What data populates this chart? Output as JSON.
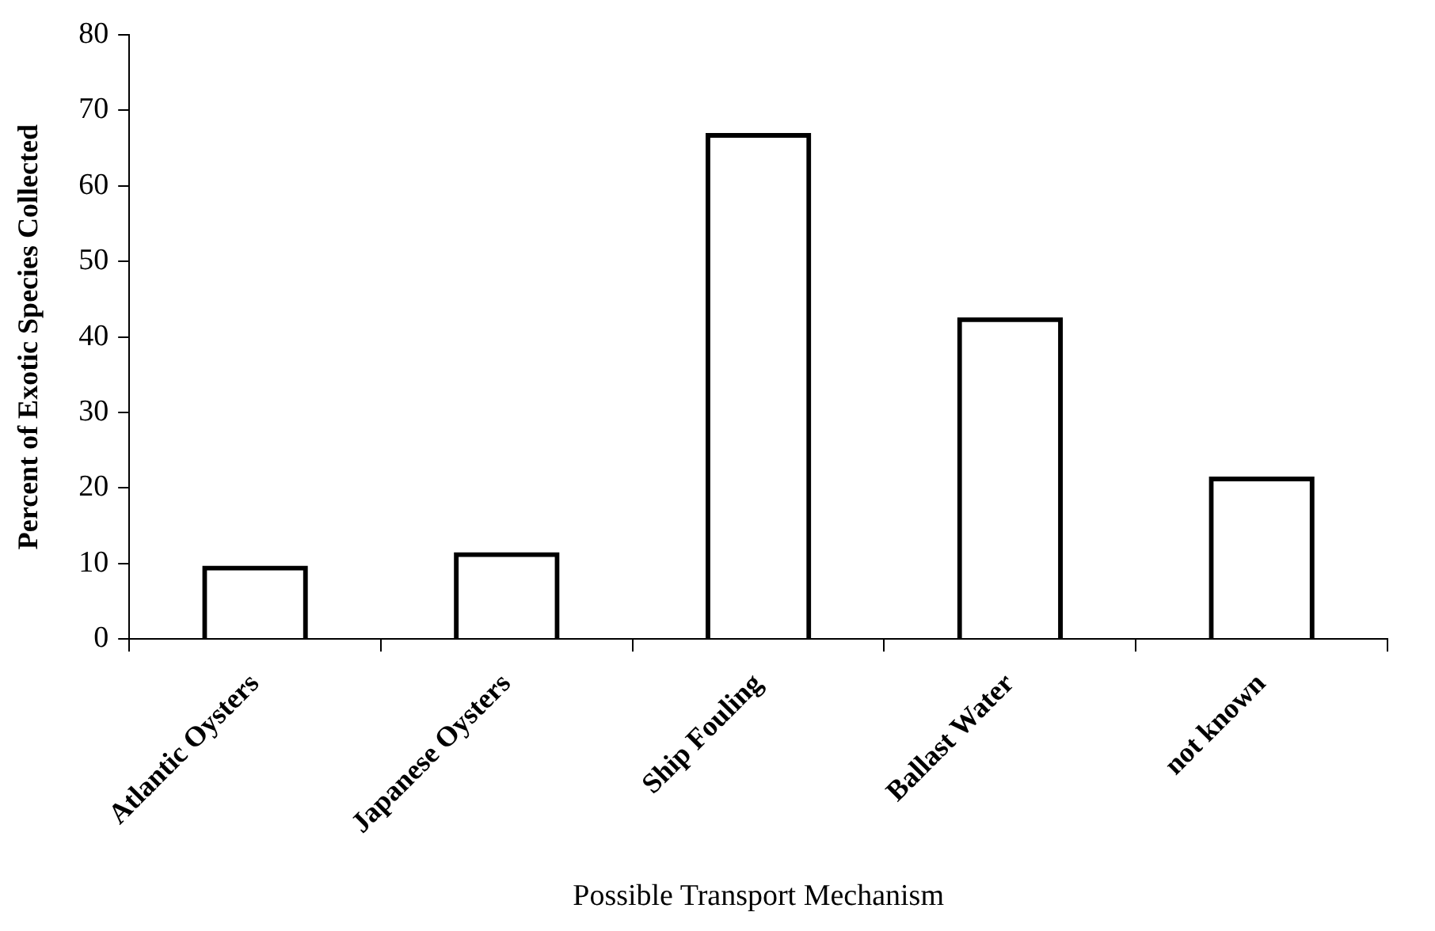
{
  "chart_data": {
    "type": "bar",
    "xlabel": "Possible Transport Mechanism",
    "ylabel": "Percent of Exotic Species Collected",
    "categories": [
      "Atlantic Oysters",
      "Japanese Oysters",
      "Ship Fouling",
      "Ballast Water",
      "not known"
    ],
    "values": [
      9.7,
      11.5,
      67,
      42.6,
      21.5
    ],
    "color": "#000000",
    "ylim": [
      0,
      80
    ],
    "yticks": [
      0,
      10,
      20,
      30,
      40,
      50,
      60,
      70,
      80
    ],
    "grid": false,
    "legend": false
  }
}
